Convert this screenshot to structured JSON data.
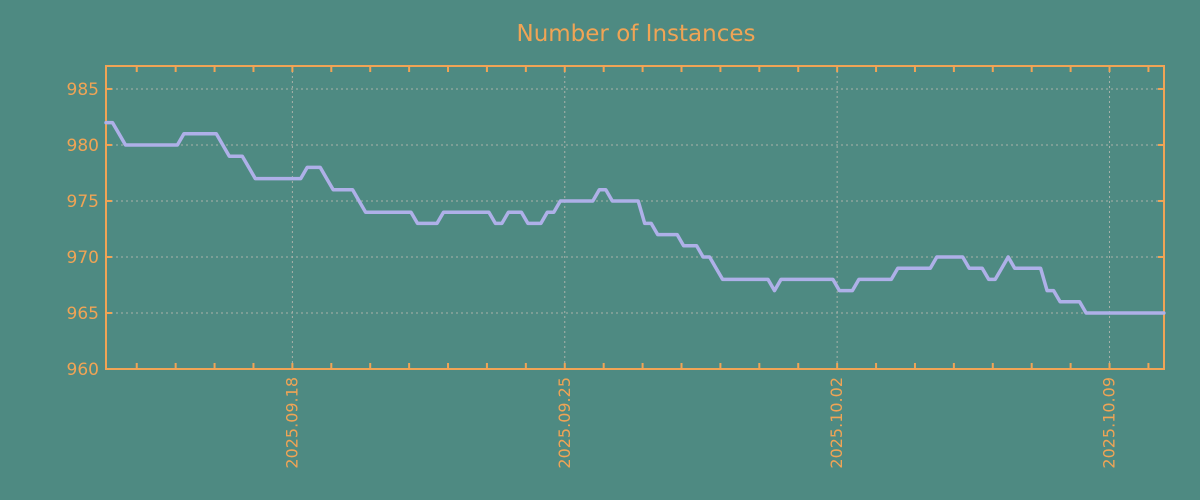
{
  "title": "Number of Instances",
  "colors": {
    "background": "#4e8a82",
    "axis": "#f0a455",
    "line": "#aeb0e8",
    "grid": "#a9b2aa"
  },
  "chart_data": {
    "type": "line",
    "title": "Number of Instances",
    "xlabel": "",
    "ylabel": "",
    "grid": "dashed",
    "legend_position": "none",
    "x_axis": {
      "unit": "days relative to first major tick (2025.09.18)",
      "xlim": [
        -4.79,
        22.4
      ],
      "major_ticks": [
        {
          "day": 0,
          "label": "2025.09.18"
        },
        {
          "day": 7,
          "label": "2025.09.25"
        },
        {
          "day": 14,
          "label": "2025.10.02"
        },
        {
          "day": 21,
          "label": "2025.10.09"
        }
      ],
      "minor_tick_interval_days": 1
    },
    "y_axis": {
      "ylim": [
        960,
        987.05
      ],
      "ticks": [
        960,
        965,
        970,
        975,
        980,
        985
      ],
      "grid_ticks": [
        965,
        970,
        975,
        980,
        985
      ]
    },
    "series": [
      {
        "name": "instances",
        "sample_interval_hours": 4,
        "t_start_days": -4.79,
        "t_step_days": 0.1668,
        "values": [
          982,
          982,
          981,
          980,
          980,
          980,
          980,
          980,
          980,
          980,
          980,
          980,
          981,
          981,
          981,
          981,
          981,
          981,
          980,
          979,
          979,
          979,
          978,
          977,
          977,
          977,
          977,
          977,
          977,
          977,
          977,
          978,
          978,
          978,
          977,
          976,
          976,
          976,
          976,
          975,
          974,
          974,
          974,
          974,
          974,
          974,
          974,
          974,
          973,
          973,
          973,
          973,
          974,
          974,
          974,
          974,
          974,
          974,
          974,
          974,
          973,
          973,
          974,
          974,
          974,
          973,
          973,
          973,
          974,
          974,
          975,
          975,
          975,
          975,
          975,
          975,
          976,
          976,
          975,
          975,
          975,
          975,
          975,
          973,
          973,
          972,
          972,
          972,
          972,
          971,
          971,
          971,
          970,
          970,
          969,
          968,
          968,
          968,
          968,
          968,
          968,
          968,
          968,
          967,
          968,
          968,
          968,
          968,
          968,
          968,
          968,
          968,
          968,
          967,
          967,
          967,
          968,
          968,
          968,
          968,
          968,
          968,
          969,
          969,
          969,
          969,
          969,
          969,
          970,
          970,
          970,
          970,
          970,
          969,
          969,
          969,
          968,
          968,
          969,
          970,
          969,
          969,
          969,
          969,
          969,
          967,
          967,
          966,
          966,
          966,
          966,
          965,
          965,
          965,
          965,
          965,
          965,
          965,
          965,
          965,
          965,
          965,
          965,
          965
        ]
      }
    ]
  }
}
